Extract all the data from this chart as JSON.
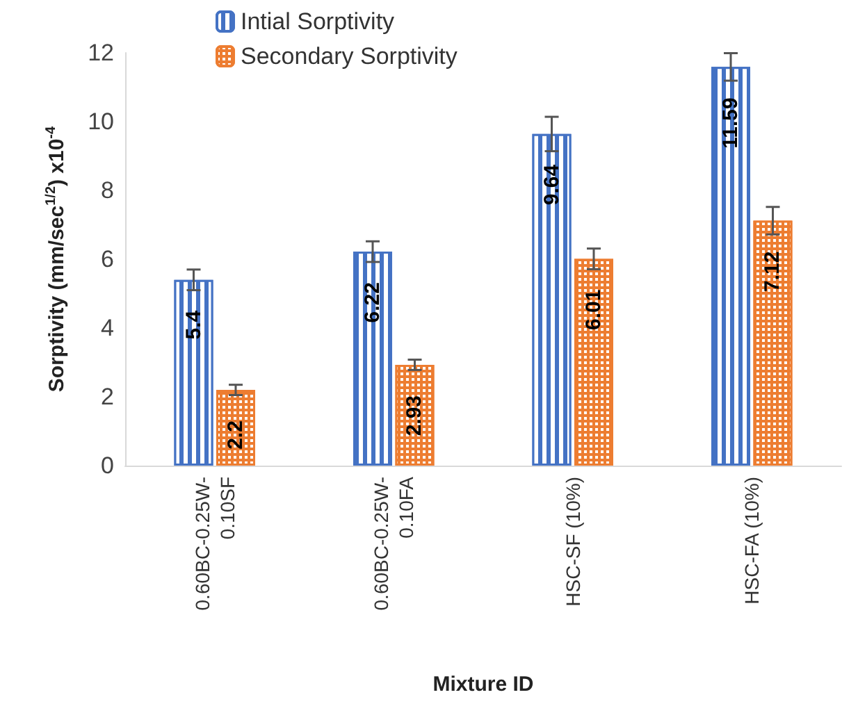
{
  "chart_data": {
    "type": "bar",
    "categories": [
      "0.60BC-0.25W-0.10SF",
      "0.60BC-0.25W-0.10FA",
      "HSC-SF (10%)",
      "HSC-FA (10%)"
    ],
    "series": [
      {
        "name": "Intial Sorptivity",
        "color": "#4472c4",
        "values": [
          5.4,
          6.22,
          9.64,
          11.59
        ],
        "errors": [
          0.3,
          0.3,
          0.5,
          0.4
        ]
      },
      {
        "name": "Secondary Sorptivity",
        "color": "#ed7d31",
        "values": [
          2.2,
          2.93,
          6.01,
          7.12
        ],
        "errors": [
          0.15,
          0.15,
          0.3,
          0.4
        ]
      }
    ],
    "xlabel": "Mixture ID",
    "ylabel": "Sorptivity (mm/sec$^{1/2}$) x10$^{-4}$",
    "ylim": [
      0,
      12
    ],
    "yticks": [
      0,
      2,
      4,
      6,
      8,
      10,
      12
    ],
    "data_labels": true,
    "legend": "top left",
    "grid": false
  }
}
